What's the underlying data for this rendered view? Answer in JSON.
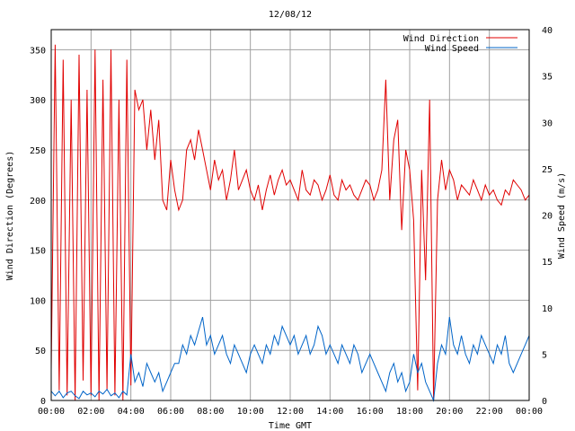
{
  "chart_data": {
    "type": "line",
    "title": "12/08/12",
    "xlabel": "Time GMT",
    "ylabel_left": "Wind Direction (Degrees)",
    "ylabel_right": "Wind Speed (m/s)",
    "x_ticks": [
      "00:00",
      "02:00",
      "04:00",
      "06:00",
      "08:00",
      "10:00",
      "12:00",
      "14:00",
      "16:00",
      "18:00",
      "20:00",
      "22:00",
      "00:00"
    ],
    "xlim_hours": [
      0,
      24
    ],
    "y_left_ticks": [
      "0",
      "50",
      "100",
      "150",
      "200",
      "250",
      "300",
      "350"
    ],
    "y_left_lim": [
      0,
      370
    ],
    "y_right_ticks": [
      "0",
      "5",
      "10",
      "15",
      "20",
      "25",
      "30",
      "35",
      "40"
    ],
    "y_right_lim": [
      0,
      40
    ],
    "grid": true,
    "legend_position": "top-right",
    "series": [
      {
        "name": "Wind Direction",
        "axis": "left",
        "color": "#e00000",
        "x": [
          0,
          0.2,
          0.4,
          0.6,
          0.8,
          1.0,
          1.2,
          1.4,
          1.6,
          1.8,
          2.0,
          2.2,
          2.4,
          2.6,
          2.8,
          3.0,
          3.2,
          3.4,
          3.6,
          3.8,
          4.0,
          4.2,
          4.4,
          4.6,
          4.8,
          5.0,
          5.2,
          5.4,
          5.6,
          5.8,
          6.0,
          6.2,
          6.4,
          6.6,
          6.8,
          7.0,
          7.2,
          7.4,
          7.6,
          7.8,
          8.0,
          8.2,
          8.4,
          8.6,
          8.8,
          9.0,
          9.2,
          9.4,
          9.6,
          9.8,
          10.0,
          10.2,
          10.4,
          10.6,
          10.8,
          11.0,
          11.2,
          11.4,
          11.6,
          11.8,
          12.0,
          12.2,
          12.4,
          12.6,
          12.8,
          13.0,
          13.2,
          13.4,
          13.6,
          13.8,
          14.0,
          14.2,
          14.4,
          14.6,
          14.8,
          15.0,
          15.2,
          15.4,
          15.6,
          15.8,
          16.0,
          16.2,
          16.4,
          16.6,
          16.8,
          17.0,
          17.2,
          17.4,
          17.6,
          17.8,
          18.0,
          18.2,
          18.4,
          18.6,
          18.8,
          19.0,
          19.2,
          19.4,
          19.6,
          19.8,
          20.0,
          20.2,
          20.4,
          20.6,
          20.8,
          21.0,
          21.2,
          21.4,
          21.6,
          21.8,
          22.0,
          22.2,
          22.4,
          22.6,
          22.8,
          23.0,
          23.2,
          23.4,
          23.6,
          23.8,
          24.0
        ],
        "values": [
          30,
          355,
          10,
          340,
          5,
          300,
          0,
          345,
          20,
          310,
          5,
          350,
          0,
          320,
          10,
          350,
          5,
          300,
          0,
          340,
          15,
          310,
          290,
          300,
          250,
          290,
          240,
          280,
          200,
          190,
          240,
          210,
          190,
          200,
          250,
          260,
          240,
          270,
          250,
          230,
          210,
          240,
          220,
          230,
          200,
          220,
          250,
          210,
          220,
          230,
          210,
          200,
          215,
          190,
          210,
          225,
          205,
          220,
          230,
          215,
          220,
          210,
          200,
          230,
          210,
          205,
          220,
          215,
          200,
          210,
          225,
          205,
          200,
          220,
          210,
          215,
          205,
          200,
          210,
          220,
          215,
          200,
          210,
          230,
          320,
          200,
          260,
          280,
          170,
          250,
          230,
          180,
          10,
          230,
          120,
          300,
          0,
          200,
          240,
          210,
          230,
          220,
          200,
          215,
          210,
          205,
          220,
          210,
          200,
          215,
          205,
          210,
          200,
          195,
          210,
          205,
          220,
          215,
          210,
          200,
          205
        ],
        "y_samples_note": ""
      },
      {
        "name": "Wind Speed",
        "axis": "right",
        "color": "#0064c8",
        "x": [
          0,
          0.2,
          0.4,
          0.6,
          0.8,
          1.0,
          1.2,
          1.4,
          1.6,
          1.8,
          2.0,
          2.2,
          2.4,
          2.6,
          2.8,
          3.0,
          3.2,
          3.4,
          3.6,
          3.8,
          4.0,
          4.2,
          4.4,
          4.6,
          4.8,
          5.0,
          5.2,
          5.4,
          5.6,
          5.8,
          6.0,
          6.2,
          6.4,
          6.6,
          6.8,
          7.0,
          7.2,
          7.4,
          7.6,
          7.8,
          8.0,
          8.2,
          8.4,
          8.6,
          8.8,
          9.0,
          9.2,
          9.4,
          9.6,
          9.8,
          10.0,
          10.2,
          10.4,
          10.6,
          10.8,
          11.0,
          11.2,
          11.4,
          11.6,
          11.8,
          12.0,
          12.2,
          12.4,
          12.6,
          12.8,
          13.0,
          13.2,
          13.4,
          13.6,
          13.8,
          14.0,
          14.2,
          14.4,
          14.6,
          14.8,
          15.0,
          15.2,
          15.4,
          15.6,
          15.8,
          16.0,
          16.2,
          16.4,
          16.6,
          16.8,
          17.0,
          17.2,
          17.4,
          17.6,
          17.8,
          18.0,
          18.2,
          18.4,
          18.6,
          18.8,
          19.0,
          19.2,
          19.4,
          19.6,
          19.8,
          20.0,
          20.2,
          20.4,
          20.6,
          20.8,
          21.0,
          21.2,
          21.4,
          21.6,
          21.8,
          22.0,
          22.2,
          22.4,
          22.6,
          22.8,
          23.0,
          23.2,
          23.4,
          23.6,
          23.8,
          24.0
        ],
        "values": [
          1,
          0.5,
          1,
          0.3,
          0.8,
          1,
          0.5,
          0.2,
          1,
          0.6,
          0.8,
          0.4,
          1,
          0.7,
          1.2,
          0.5,
          0.8,
          0.3,
          1,
          0.6,
          5,
          2,
          3,
          1.5,
          4,
          3,
          2,
          3,
          1,
          2,
          3,
          4,
          4,
          6,
          5,
          7,
          6,
          7.5,
          9,
          6,
          7,
          5,
          6,
          7,
          5,
          4,
          6,
          5,
          4,
          3,
          5,
          6,
          5,
          4,
          6,
          5,
          7,
          6,
          8,
          7,
          6,
          7,
          5,
          6,
          7,
          5,
          6,
          8,
          7,
          5,
          6,
          5,
          4,
          6,
          5,
          4,
          6,
          5,
          3,
          4,
          5,
          4,
          3,
          2,
          1,
          3,
          4,
          2,
          3,
          1,
          2,
          5,
          3,
          4,
          2,
          1,
          0,
          4,
          6,
          5,
          9,
          6,
          5,
          7,
          5,
          4,
          6,
          5,
          7,
          6,
          5,
          4,
          6,
          5,
          7,
          4,
          3,
          4,
          5,
          6,
          7
        ]
      }
    ]
  }
}
